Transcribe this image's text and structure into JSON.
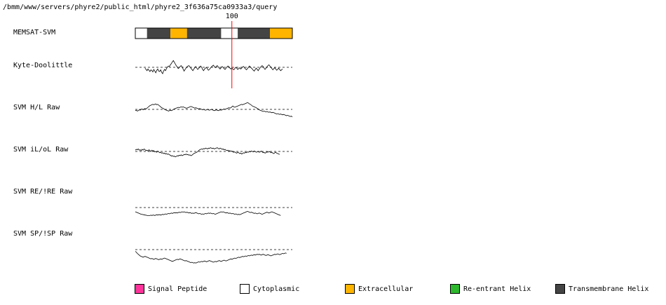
{
  "header": {
    "path": "/bmm/www/servers/phyre2/public_html/phyre2_3f636a75ca0933a3/query"
  },
  "chart_data": {
    "type": "line",
    "marker": {
      "position": 100,
      "label": "100",
      "color": "#ff0000"
    },
    "sequence_range": [
      1,
      162
    ],
    "memsat_svm": {
      "label": "MEMSAT-SVM",
      "segments": [
        {
          "start": 1,
          "end": 13,
          "type": "Cytoplasmic"
        },
        {
          "start": 13,
          "end": 37,
          "type": "Transmembrane Helix"
        },
        {
          "start": 37,
          "end": 54,
          "type": "Extracellular"
        },
        {
          "start": 54,
          "end": 89,
          "type": "Transmembrane Helix"
        },
        {
          "start": 89,
          "end": 106,
          "type": "Cytoplasmic"
        },
        {
          "start": 106,
          "end": 139,
          "type": "Transmembrane Helix"
        },
        {
          "start": 139,
          "end": 162,
          "type": "Extracellular"
        }
      ]
    },
    "series": [
      {
        "name": "Kyte-Doolittle",
        "x_start": 11,
        "threshold": 0,
        "values": [
          -0.2,
          -0.5,
          -0.8,
          -0.4,
          -0.7,
          -1.0,
          -0.6,
          -0.8,
          -1.1,
          -0.5,
          -0.9,
          -1.3,
          -0.7,
          -0.4,
          -0.9,
          -1.0,
          -0.6,
          -1.2,
          -1.5,
          -0.9,
          -0.5,
          -0.8,
          -0.3,
          0.1,
          0.3,
          0.2,
          0.6,
          0.9,
          1.3,
          1.6,
          1.2,
          0.8,
          0.4,
          0.1,
          -0.3,
          -0.1,
          0.2,
          0.4,
          0.1,
          -0.4,
          -0.9,
          -0.5,
          -0.2,
          0.1,
          0.3,
          0.4,
          0.1,
          -0.2,
          -0.5,
          -0.8,
          -0.4,
          -0.1,
          0.2,
          -0.2,
          -0.5,
          -0.3,
          0.1,
          0.3,
          0.0,
          -0.5,
          -0.8,
          -0.4,
          -0.2,
          0.0,
          -0.4,
          -0.7,
          -0.5,
          -0.2,
          0.1,
          0.3,
          0.5,
          0.2,
          -0.1,
          0.2,
          0.4,
          0.1,
          -0.2,
          -0.4,
          -0.1,
          0.2,
          0.0,
          -0.3,
          -0.5,
          -0.2,
          0.1,
          0.3,
          0.1,
          -0.2,
          -0.4,
          -0.1,
          -0.4,
          -0.6,
          -0.3,
          0.0,
          -0.2,
          -0.5,
          -0.3,
          -0.1,
          -0.4,
          -0.2,
          0.1,
          0.2,
          -0.1,
          -0.4,
          -0.6,
          -0.3,
          0.0,
          0.3,
          0.1,
          -0.2,
          -0.4,
          -0.7,
          -0.9,
          -0.5,
          -0.2,
          -0.5,
          -0.8,
          -0.4,
          -0.1,
          0.2,
          0.4,
          0.2,
          -0.2,
          -0.5,
          -0.2,
          0.1,
          0.4,
          0.6,
          0.3,
          0.0,
          -0.3,
          -0.6,
          -0.3,
          -0.1,
          -0.4,
          -0.7,
          -0.5,
          -0.2,
          -0.5,
          -0.8,
          -0.6,
          -0.4
        ]
      },
      {
        "name": "SVM H/L Raw",
        "x_start": 1,
        "threshold": 0,
        "values": [
          -0.3,
          -0.2,
          -0.4,
          -0.3,
          -0.1,
          -0.2,
          0.0,
          0.1,
          -0.1,
          0.1,
          0.2,
          0.1,
          0.3,
          0.5,
          0.7,
          0.9,
          1.0,
          1.1,
          1.2,
          1.1,
          1.2,
          1.3,
          1.1,
          1.2,
          1.0,
          0.8,
          0.6,
          0.4,
          0.3,
          0.2,
          0.0,
          -0.1,
          -0.2,
          -0.3,
          -0.4,
          -0.3,
          -0.2,
          -0.3,
          -0.2,
          0.0,
          0.1,
          0.2,
          0.3,
          0.4,
          0.5,
          0.4,
          0.5,
          0.6,
          0.5,
          0.6,
          0.5,
          0.4,
          0.3,
          0.3,
          0.4,
          0.5,
          0.6,
          0.7,
          0.6,
          0.5,
          0.4,
          0.3,
          0.4,
          0.3,
          0.2,
          0.1,
          0.2,
          0.1,
          0.0,
          -0.1,
          0.0,
          -0.1,
          -0.2,
          -0.1,
          0.0,
          -0.1,
          -0.2,
          -0.1,
          0.0,
          -0.1,
          -0.2,
          -0.3,
          -0.2,
          -0.1,
          -0.2,
          -0.3,
          -0.2,
          -0.1,
          -0.2,
          -0.1,
          0.0,
          0.1,
          0.0,
          0.1,
          0.2,
          0.3,
          0.4,
          0.3,
          0.4,
          0.6,
          0.8,
          0.6,
          0.5,
          0.6,
          0.7,
          0.8,
          0.9,
          1.0,
          1.1,
          1.2,
          1.1,
          1.2,
          1.3,
          1.4,
          1.5,
          1.6,
          1.5,
          1.3,
          1.2,
          1.0,
          0.8,
          0.7,
          0.6,
          0.5,
          0.4,
          0.2,
          0.1,
          -0.1,
          -0.2,
          -0.3,
          -0.4,
          -0.5,
          -0.4,
          -0.5,
          -0.6,
          -0.5,
          -0.6,
          -0.7,
          -0.6,
          -0.7,
          -0.8,
          -0.7,
          -0.8,
          -0.9,
          -1.0,
          -1.1,
          -1.0,
          -1.1,
          -1.2,
          -1.1,
          -1.2,
          -1.3,
          -1.2,
          -1.3,
          -1.4,
          -1.5,
          -1.4,
          -1.5,
          -1.6,
          -1.7,
          -1.6,
          -1.8
        ]
      },
      {
        "name": "SVM iL/oL Raw",
        "x_start": 1,
        "threshold": 0,
        "values": [
          0.3,
          0.5,
          0.4,
          0.6,
          0.3,
          0.4,
          0.2,
          0.5,
          0.3,
          0.6,
          0.4,
          0.2,
          0.3,
          0.1,
          0.4,
          0.2,
          0.0,
          0.3,
          0.1,
          0.2,
          -0.1,
          0.0,
          -0.2,
          0.1,
          -0.1,
          -0.3,
          -0.2,
          -0.4,
          -0.3,
          -0.5,
          -0.4,
          -0.6,
          -0.5,
          -0.7,
          -0.6,
          -0.8,
          -0.9,
          -1.1,
          -1.0,
          -1.2,
          -1.1,
          -1.3,
          -1.2,
          -1.0,
          -1.1,
          -0.9,
          -1.0,
          -0.8,
          -1.0,
          -0.9,
          -0.7,
          -0.8,
          -0.6,
          -0.8,
          -0.7,
          -0.9,
          -0.8,
          -1.0,
          -0.9,
          -0.7,
          -0.5,
          -0.4,
          -0.3,
          -0.2,
          0.0,
          0.2,
          0.4,
          0.5,
          0.6,
          0.5,
          0.7,
          0.6,
          0.8,
          0.7,
          0.6,
          0.8,
          0.7,
          0.9,
          0.8,
          0.7,
          0.8,
          0.6,
          0.7,
          0.8,
          0.9,
          0.7,
          0.6,
          0.8,
          0.7,
          0.5,
          0.6,
          0.4,
          0.5,
          0.3,
          0.2,
          0.3,
          0.1,
          0.2,
          0.0,
          0.1,
          -0.1,
          -0.2,
          -0.1,
          -0.3,
          -0.4,
          -0.2,
          -0.3,
          -0.5,
          -0.4,
          -0.6,
          -0.5,
          -0.3,
          -0.4,
          -0.2,
          -0.3,
          -0.1,
          -0.2,
          0.0,
          -0.1,
          0.1,
          0.0,
          -0.1,
          0.1,
          0.0,
          -0.2,
          -0.1,
          0.0,
          -0.2,
          -0.1,
          0.1,
          -0.1,
          -0.3,
          -0.2,
          -0.4,
          -0.3,
          -0.1,
          -0.2,
          0.0,
          -0.1,
          -0.3,
          -0.2,
          -0.4,
          -0.5,
          -0.3,
          -0.2,
          -0.4,
          -0.5,
          -0.6,
          -0.7
        ]
      },
      {
        "name": "SVM RE/!RE Raw",
        "x_start": 1,
        "threshold": 0,
        "values": [
          -1.0,
          -1.1,
          -1.2,
          -1.3,
          -1.4,
          -1.5,
          -1.6,
          -1.6,
          -1.7,
          -1.7,
          -1.8,
          -1.8,
          -1.9,
          -1.9,
          -1.9,
          -1.9,
          -1.8,
          -1.9,
          -1.8,
          -1.8,
          -1.9,
          -1.8,
          -1.7,
          -1.8,
          -1.7,
          -1.7,
          -1.8,
          -1.7,
          -1.6,
          -1.7,
          -1.6,
          -1.5,
          -1.6,
          -1.5,
          -1.4,
          -1.5,
          -1.4,
          -1.3,
          -1.4,
          -1.3,
          -1.2,
          -1.3,
          -1.2,
          -1.3,
          -1.2,
          -1.1,
          -1.2,
          -1.1,
          -1.0,
          -1.1,
          -1.0,
          -1.1,
          -1.2,
          -1.1,
          -1.2,
          -1.3,
          -1.2,
          -1.3,
          -1.4,
          -1.3,
          -1.4,
          -1.3,
          -1.2,
          -1.3,
          -1.4,
          -1.5,
          -1.4,
          -1.5,
          -1.6,
          -1.5,
          -1.6,
          -1.5,
          -1.4,
          -1.5,
          -1.4,
          -1.3,
          -1.4,
          -1.3,
          -1.4,
          -1.5,
          -1.4,
          -1.5,
          -1.6,
          -1.5,
          -1.4,
          -1.3,
          -1.2,
          -1.1,
          -1.0,
          -1.1,
          -1.0,
          -1.1,
          -1.2,
          -1.3,
          -1.2,
          -1.3,
          -1.4,
          -1.3,
          -1.4,
          -1.5,
          -1.4,
          -1.5,
          -1.6,
          -1.5,
          -1.6,
          -1.7,
          -1.6,
          -1.7,
          -1.6,
          -1.5,
          -1.4,
          -1.3,
          -1.2,
          -1.1,
          -1.0,
          -0.9,
          -1.0,
          -1.1,
          -1.2,
          -1.1,
          -1.2,
          -1.3,
          -1.4,
          -1.3,
          -1.4,
          -1.5,
          -1.4,
          -1.3,
          -1.4,
          -1.5,
          -1.6,
          -1.5,
          -1.4,
          -1.3,
          -1.2,
          -1.1,
          -1.2,
          -1.3,
          -1.2,
          -1.1,
          -1.0,
          -1.1,
          -1.2,
          -1.3,
          -1.4,
          -1.5,
          -1.6,
          -1.7,
          -1.8,
          -1.9
        ]
      },
      {
        "name": "SVM SP/!SP Raw",
        "x_start": 1,
        "threshold": 0,
        "values": [
          -0.4,
          -0.6,
          -0.9,
          -1.1,
          -1.3,
          -1.5,
          -1.6,
          -1.7,
          -1.8,
          -1.7,
          -1.6,
          -1.7,
          -1.8,
          -1.9,
          -2.0,
          -2.1,
          -2.2,
          -2.1,
          -2.2,
          -2.3,
          -2.2,
          -2.1,
          -2.2,
          -2.3,
          -2.4,
          -2.3,
          -2.2,
          -2.3,
          -2.2,
          -2.1,
          -2.0,
          -2.1,
          -2.2,
          -2.3,
          -2.4,
          -2.5,
          -2.6,
          -2.7,
          -2.8,
          -2.7,
          -2.6,
          -2.5,
          -2.4,
          -2.3,
          -2.4,
          -2.3,
          -2.2,
          -2.3,
          -2.4,
          -2.5,
          -2.6,
          -2.7,
          -2.6,
          -2.7,
          -2.8,
          -2.9,
          -3.0,
          -3.1,
          -3.0,
          -3.1,
          -3.2,
          -3.1,
          -3.2,
          -3.1,
          -3.0,
          -2.9,
          -3.0,
          -2.9,
          -2.8,
          -2.9,
          -2.8,
          -2.7,
          -2.8,
          -2.9,
          -2.8,
          -2.7,
          -2.6,
          -2.7,
          -2.8,
          -2.9,
          -3.0,
          -2.9,
          -2.8,
          -2.9,
          -2.8,
          -2.7,
          -2.6,
          -2.7,
          -2.8,
          -2.7,
          -2.6,
          -2.5,
          -2.6,
          -2.7,
          -2.6,
          -2.5,
          -2.4,
          -2.3,
          -2.2,
          -2.3,
          -2.2,
          -2.1,
          -2.0,
          -2.1,
          -2.0,
          -1.9,
          -1.8,
          -1.9,
          -1.8,
          -1.7,
          -1.6,
          -1.7,
          -1.6,
          -1.5,
          -1.6,
          -1.5,
          -1.4,
          -1.5,
          -1.4,
          -1.3,
          -1.4,
          -1.3,
          -1.2,
          -1.3,
          -1.2,
          -1.1,
          -1.2,
          -1.1,
          -1.2,
          -1.3,
          -1.2,
          -1.1,
          -1.2,
          -1.3,
          -1.4,
          -1.3,
          -1.2,
          -1.3,
          -1.4,
          -1.5,
          -1.4,
          -1.3,
          -1.2,
          -1.1,
          -1.2,
          -1.1,
          -1.0,
          -1.1,
          -1.2,
          -1.1,
          -1.0,
          -0.9,
          -1.0,
          -0.9,
          -0.8,
          -0.9
        ]
      }
    ]
  },
  "legend": [
    {
      "label": "Signal Peptide",
      "color": "#ff3399"
    },
    {
      "label": "Cytoplasmic",
      "color": "#ffffff"
    },
    {
      "label": "Extracellular",
      "color": "#ffb400"
    },
    {
      "label": "Re-entrant Helix",
      "color": "#2eb82e"
    },
    {
      "label": "Transmembrane Helix",
      "color": "#444444"
    }
  ],
  "colors": {
    "Cytoplasmic": "#ffffff",
    "Extracellular": "#ffb400",
    "Transmembrane Helix": "#444444",
    "Signal Peptide": "#ff3399",
    "Re-entrant Helix": "#2eb82e"
  }
}
